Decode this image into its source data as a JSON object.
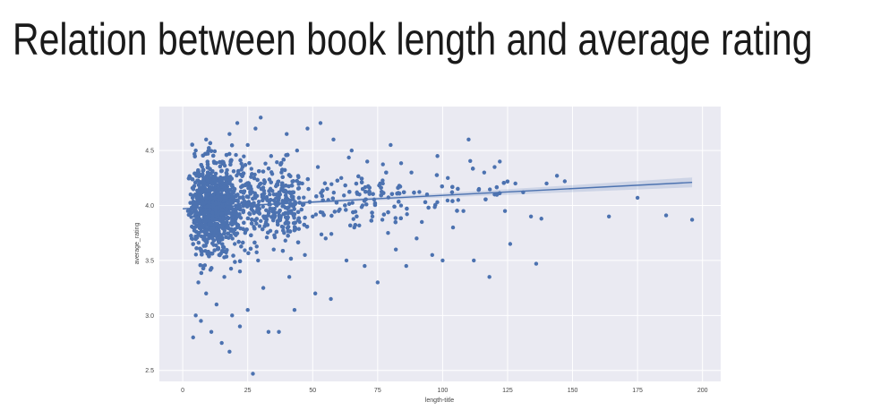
{
  "page": {
    "title": "Relation between book length and average rating"
  },
  "chart_data": {
    "type": "scatter",
    "xlabel": "length-title",
    "ylabel": "average_rating",
    "xlim": [
      -9,
      207
    ],
    "ylim": [
      2.4,
      4.9
    ],
    "xticks": [
      0,
      25,
      50,
      75,
      100,
      125,
      150,
      175,
      200
    ],
    "yticks": [
      2.5,
      3.0,
      3.5,
      4.0,
      4.5
    ],
    "xtick_labels": [
      "0",
      "25",
      "50",
      "75",
      "100",
      "125",
      "150",
      "175",
      "200"
    ],
    "ytick_labels": [
      "2.5",
      "3.0",
      "3.5",
      "4.0",
      "4.5"
    ],
    "grid": true,
    "background": "#eaeaf2",
    "point_color": "#4c72b0",
    "regression_line": {
      "x": [
        0,
        196
      ],
      "y": [
        3.97,
        4.21
      ],
      "color": "#4c72b0"
    },
    "points": [
      [
        2,
        3.95
      ],
      [
        3,
        4.1
      ],
      [
        4,
        3.8
      ],
      [
        4,
        2.8
      ],
      [
        5,
        3.0
      ],
      [
        5,
        4.5
      ],
      [
        6,
        3.3
      ],
      [
        6,
        4.3
      ],
      [
        7,
        3.6
      ],
      [
        7,
        2.95
      ],
      [
        8,
        4.0
      ],
      [
        8,
        3.45
      ],
      [
        9,
        4.6
      ],
      [
        9,
        3.2
      ],
      [
        10,
        3.7
      ],
      [
        10,
        4.2
      ],
      [
        11,
        2.85
      ],
      [
        12,
        3.9
      ],
      [
        12,
        4.4
      ],
      [
        13,
        3.1
      ],
      [
        14,
        4.05
      ],
      [
        14,
        3.55
      ],
      [
        15,
        2.75
      ],
      [
        16,
        4.25
      ],
      [
        16,
        3.35
      ],
      [
        17,
        3.85
      ],
      [
        18,
        4.65
      ],
      [
        18,
        2.67
      ],
      [
        19,
        3.0
      ],
      [
        20,
        4.15
      ],
      [
        20,
        3.65
      ],
      [
        21,
        4.75
      ],
      [
        22,
        2.9
      ],
      [
        22,
        3.4
      ],
      [
        23,
        4.35
      ],
      [
        24,
        3.75
      ],
      [
        25,
        4.55
      ],
      [
        25,
        3.05
      ],
      [
        26,
        4.0
      ],
      [
        27,
        2.47
      ],
      [
        27,
        3.95
      ],
      [
        28,
        4.7
      ],
      [
        29,
        3.5
      ],
      [
        30,
        4.8
      ],
      [
        30,
        4.2
      ],
      [
        31,
        3.25
      ],
      [
        32,
        3.9
      ],
      [
        33,
        2.85
      ],
      [
        34,
        4.45
      ],
      [
        35,
        3.6
      ],
      [
        36,
        4.1
      ],
      [
        37,
        2.85
      ],
      [
        38,
        4.3
      ],
      [
        39,
        3.75
      ],
      [
        40,
        4.65
      ],
      [
        41,
        3.35
      ],
      [
        42,
        4.0
      ],
      [
        43,
        3.05
      ],
      [
        44,
        4.5
      ],
      [
        45,
        3.85
      ],
      [
        46,
        4.2
      ],
      [
        47,
        3.55
      ],
      [
        48,
        4.7
      ],
      [
        50,
        3.9
      ],
      [
        51,
        3.2
      ],
      [
        52,
        4.35
      ],
      [
        53,
        4.75
      ],
      [
        55,
        3.7
      ],
      [
        56,
        4.05
      ],
      [
        57,
        3.15
      ],
      [
        58,
        4.6
      ],
      [
        60,
        3.95
      ],
      [
        61,
        4.25
      ],
      [
        63,
        3.5
      ],
      [
        65,
        4.5
      ],
      [
        66,
        3.8
      ],
      [
        68,
        4.1
      ],
      [
        70,
        3.45
      ],
      [
        71,
        4.4
      ],
      [
        73,
        3.9
      ],
      [
        75,
        3.3
      ],
      [
        77,
        4.2
      ],
      [
        79,
        3.75
      ],
      [
        80,
        4.55
      ],
      [
        82,
        3.6
      ],
      [
        84,
        4.0
      ],
      [
        86,
        3.45
      ],
      [
        88,
        4.3
      ],
      [
        90,
        3.7
      ],
      [
        92,
        3.85
      ],
      [
        94,
        4.1
      ],
      [
        96,
        3.55
      ],
      [
        98,
        4.45
      ],
      [
        100,
        3.5
      ],
      [
        102,
        4.25
      ],
      [
        104,
        3.8
      ],
      [
        106,
        4.05
      ],
      [
        108,
        3.95
      ],
      [
        110,
        4.6
      ],
      [
        112,
        3.5
      ],
      [
        114,
        4.15
      ],
      [
        116,
        4.3
      ],
      [
        118,
        3.35
      ],
      [
        120,
        4.1
      ],
      [
        122,
        4.4
      ],
      [
        124,
        3.95
      ],
      [
        126,
        3.65
      ],
      [
        128,
        4.2
      ],
      [
        131,
        4.12
      ],
      [
        134,
        3.9
      ],
      [
        136,
        3.47
      ],
      [
        138,
        3.88
      ],
      [
        140,
        4.2
      ],
      [
        144,
        4.27
      ],
      [
        147,
        4.22
      ],
      [
        164,
        3.9
      ],
      [
        175,
        4.07
      ],
      [
        186,
        3.91
      ],
      [
        196,
        3.87
      ],
      [
        120,
        4.35
      ]
    ]
  }
}
